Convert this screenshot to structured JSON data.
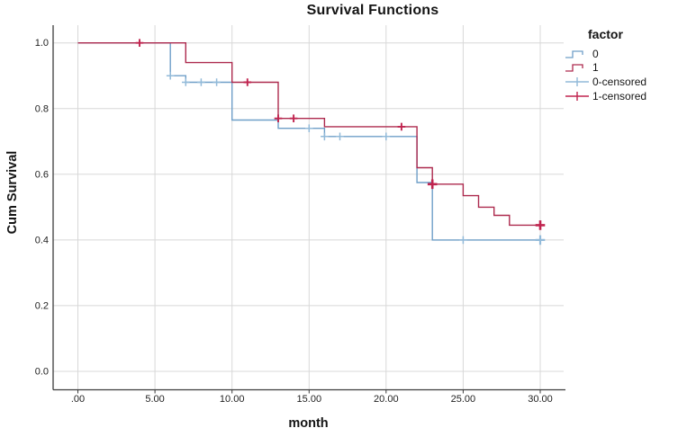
{
  "chart_data": {
    "type": "line",
    "subtype": "kaplan-meier-step",
    "title": "Survival Functions",
    "xlabel": "month",
    "ylabel": "Cum Survival",
    "legend_title": "factor",
    "legend_position": "right",
    "grid": true,
    "x_tick_values": [
      0,
      5,
      10,
      15,
      20,
      25,
      30
    ],
    "x_tick_labels": [
      ".00",
      "5.00",
      "10.00",
      "15.00",
      "20.00",
      "25.00",
      "30.00"
    ],
    "y_tick_values": [
      0.0,
      0.2,
      0.4,
      0.6,
      0.8,
      1.0
    ],
    "y_tick_labels": [
      "0.0",
      "0.2",
      "0.4",
      "0.6",
      "0.8",
      "1.0"
    ],
    "xlim": [
      -1.6,
      31.6
    ],
    "ylim": [
      -0.06,
      1.05
    ],
    "series": [
      {
        "name": "0",
        "color": "#6f9fc8",
        "end": 30,
        "steps": [
          [
            0,
            1.0
          ],
          [
            6,
            0.9
          ],
          [
            7,
            0.88
          ],
          [
            10,
            0.765
          ],
          [
            13,
            0.74
          ],
          [
            16,
            0.715
          ],
          [
            22,
            0.575
          ],
          [
            23,
            0.4
          ]
        ]
      },
      {
        "name": "1",
        "color": "#ad2a4e",
        "end": 30,
        "steps": [
          [
            0,
            1.0
          ],
          [
            7,
            0.94
          ],
          [
            10,
            0.88
          ],
          [
            13,
            0.77
          ],
          [
            16,
            0.745
          ],
          [
            22,
            0.62
          ],
          [
            23,
            0.57
          ],
          [
            25,
            0.535
          ],
          [
            26,
            0.5
          ],
          [
            27,
            0.475
          ],
          [
            28,
            0.445
          ]
        ]
      }
    ],
    "censored": [
      {
        "name": "0-censored",
        "color": "#92bad9",
        "marker_stroke": 1.5,
        "points": [
          [
            6,
            0.9
          ],
          [
            7,
            0.88
          ],
          [
            8,
            0.88
          ],
          [
            9,
            0.88
          ],
          [
            15,
            0.74
          ],
          [
            16,
            0.715
          ],
          [
            17,
            0.715
          ],
          [
            20,
            0.715
          ],
          [
            25,
            0.4
          ],
          [
            30,
            0.4,
            1
          ]
        ]
      },
      {
        "name": "1-censored",
        "color": "#c0244f",
        "marker_stroke": 1.9,
        "points": [
          [
            4,
            1.0
          ],
          [
            11,
            0.88
          ],
          [
            13,
            0.77
          ],
          [
            14,
            0.77
          ],
          [
            21,
            0.745
          ],
          [
            23,
            0.57,
            1
          ],
          [
            30,
            0.445,
            1
          ]
        ]
      }
    ],
    "colors": {
      "grid": "#d8d8d8",
      "axis": "#3c3c3c",
      "text": "#1f1f1f"
    }
  }
}
